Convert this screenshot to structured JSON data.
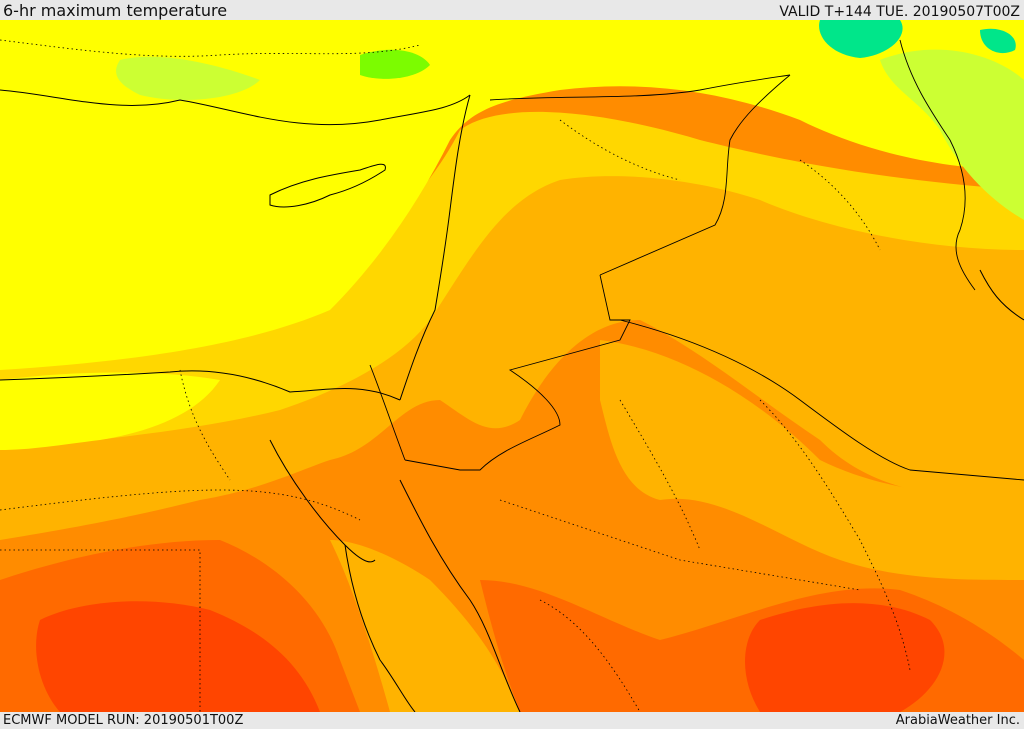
{
  "header": {
    "title": "6-hr maximum temperature",
    "valid": "VALID T+144 TUE. 20190507T00Z"
  },
  "footer": {
    "model_run": "ECMWF MODEL RUN: 20190501T00Z",
    "credit": "ArabiaWeather Inc."
  },
  "palette": {
    "green": "#7cfc00",
    "yellow_green": "#ccff33",
    "yellow": "#ffff00",
    "gold": "#ffd700",
    "orange_light": "#ffb300",
    "orange": "#ff8c00",
    "orange_dark": "#ff6a00",
    "red_orange": "#ff4500",
    "teal": "#00e68a"
  }
}
